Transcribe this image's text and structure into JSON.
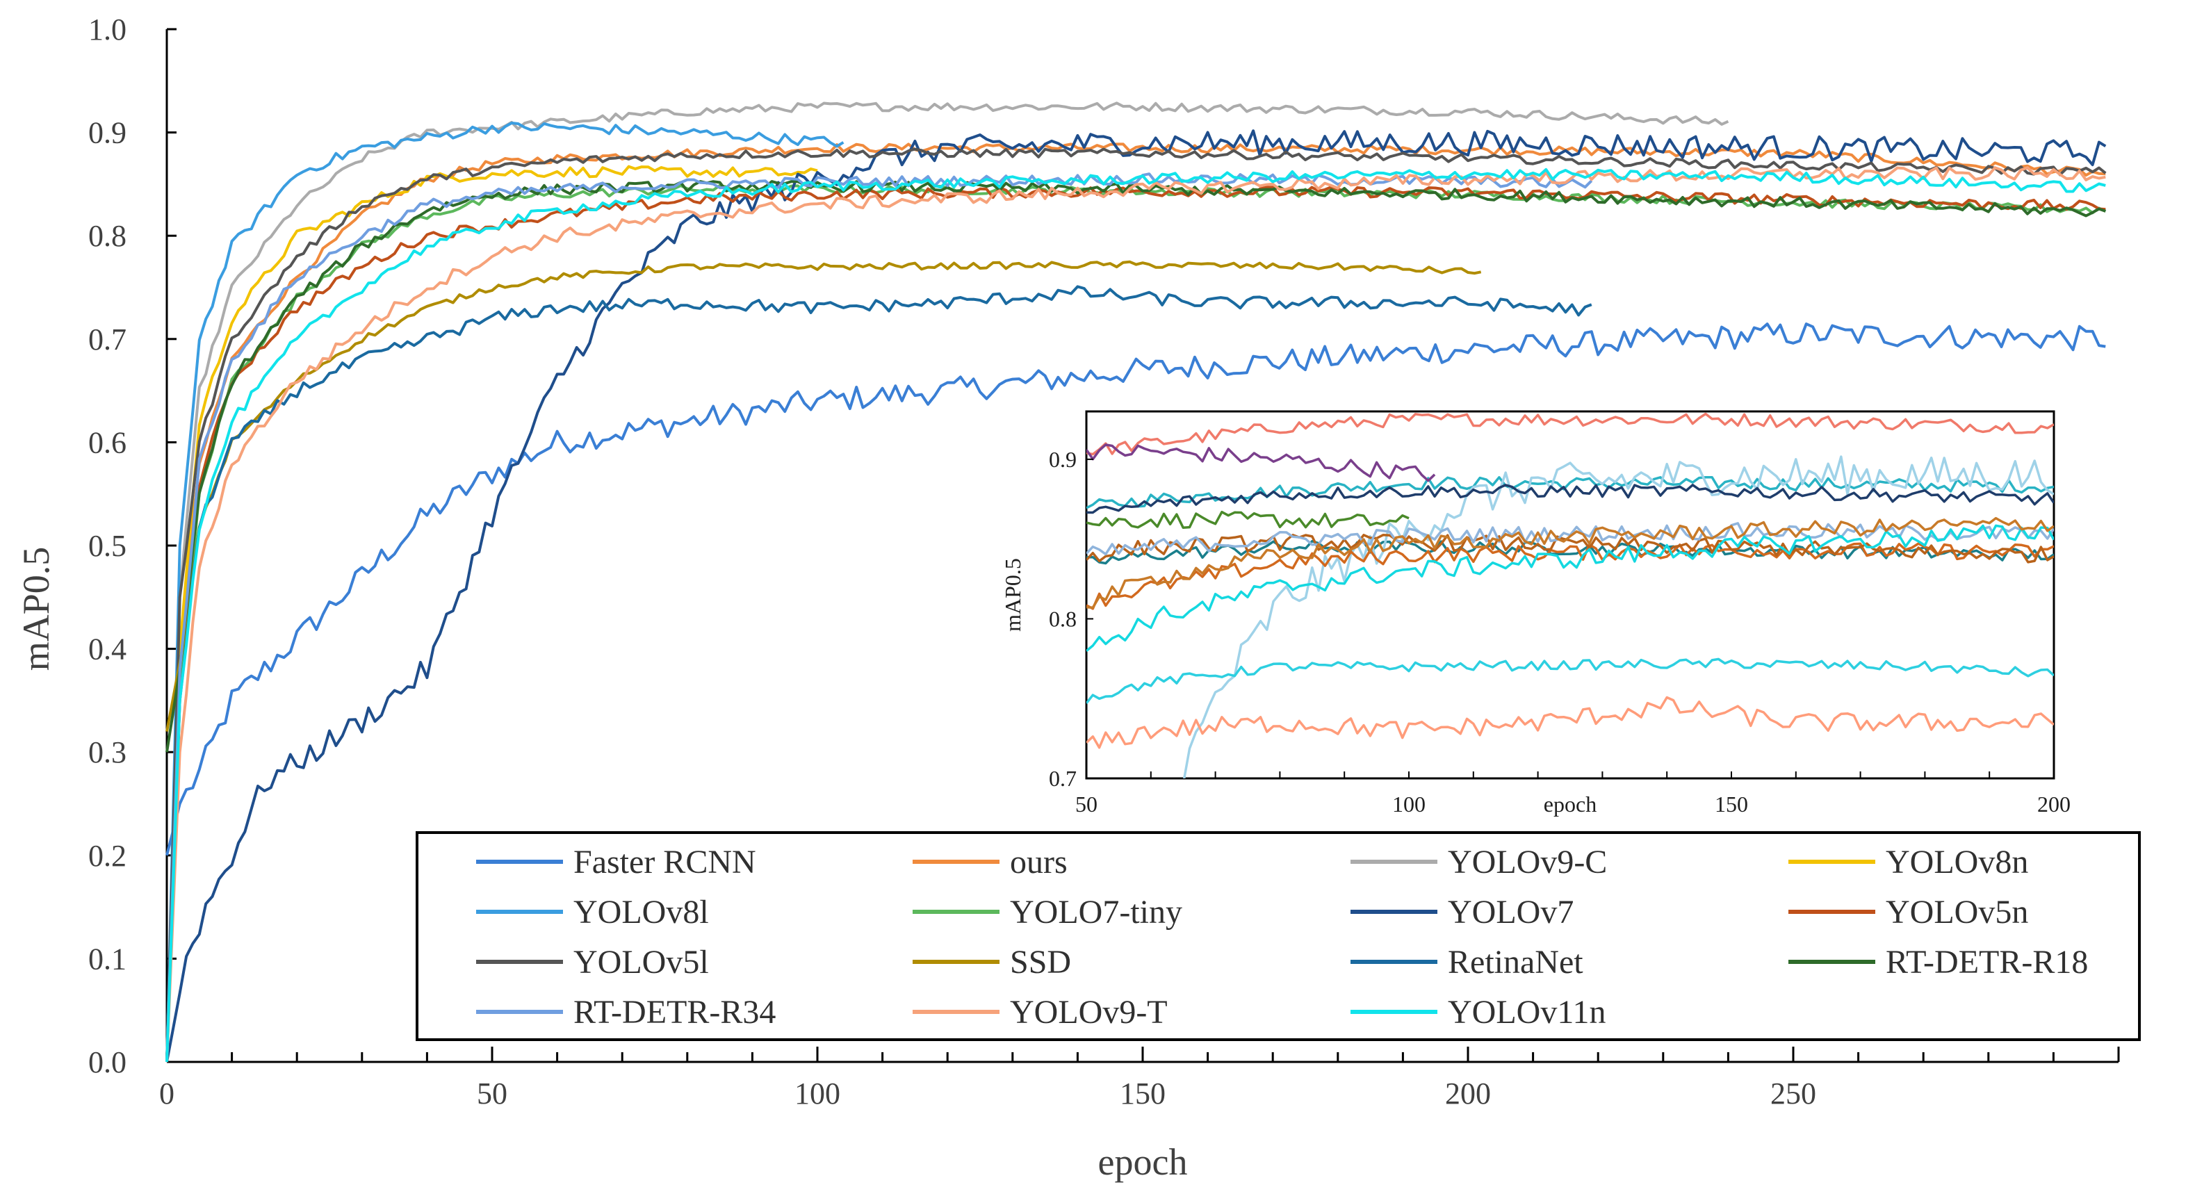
{
  "chart_data": {
    "type": "line",
    "xlabel": "epoch",
    "ylabel": "mAP0.5",
    "xlim": [
      0,
      300
    ],
    "ylim": [
      0.0,
      1.0
    ],
    "x_ticks": [
      "0",
      "50",
      "100",
      "150",
      "200",
      "250"
    ],
    "y_ticks": [
      "0.0",
      "0.1",
      "0.2",
      "0.3",
      "0.4",
      "0.5",
      "0.6",
      "0.7",
      "0.8",
      "0.9",
      "1.0"
    ],
    "grid": false,
    "legend_position": "bottom-right",
    "series": [
      {
        "name": "Faster RCNN",
        "color": "#3a7fd5",
        "epochs": 300,
        "noise": 0.012,
        "points": [
          [
            0,
            0.2
          ],
          [
            2,
            0.25
          ],
          [
            5,
            0.28
          ],
          [
            10,
            0.35
          ],
          [
            20,
            0.41
          ],
          [
            30,
            0.47
          ],
          [
            40,
            0.53
          ],
          [
            50,
            0.57
          ],
          [
            60,
            0.6
          ],
          [
            80,
            0.62
          ],
          [
            100,
            0.64
          ],
          [
            120,
            0.65
          ],
          [
            150,
            0.67
          ],
          [
            200,
            0.69
          ],
          [
            250,
            0.705
          ],
          [
            298,
            0.7
          ]
        ]
      },
      {
        "name": "ours",
        "color": "#f08a3c",
        "epochs": 300,
        "noise": 0.004,
        "points": [
          [
            0,
            0.0
          ],
          [
            2,
            0.4
          ],
          [
            5,
            0.58
          ],
          [
            10,
            0.68
          ],
          [
            20,
            0.76
          ],
          [
            30,
            0.82
          ],
          [
            40,
            0.855
          ],
          [
            50,
            0.87
          ],
          [
            60,
            0.875
          ],
          [
            80,
            0.88
          ],
          [
            100,
            0.885
          ],
          [
            150,
            0.885
          ],
          [
            200,
            0.883
          ],
          [
            250,
            0.88
          ],
          [
            298,
            0.86
          ]
        ]
      },
      {
        "name": "YOLOv9-C",
        "color": "#ababab",
        "epochs": 241,
        "noise": 0.004,
        "points": [
          [
            0,
            0.0
          ],
          [
            2,
            0.45
          ],
          [
            5,
            0.65
          ],
          [
            10,
            0.75
          ],
          [
            20,
            0.83
          ],
          [
            30,
            0.875
          ],
          [
            40,
            0.9
          ],
          [
            50,
            0.905
          ],
          [
            60,
            0.91
          ],
          [
            80,
            0.92
          ],
          [
            100,
            0.925
          ],
          [
            150,
            0.925
          ],
          [
            200,
            0.92
          ],
          [
            240,
            0.91
          ]
        ]
      },
      {
        "name": "YOLOv8n",
        "color": "#f2c200",
        "epochs": 101,
        "noise": 0.005,
        "points": [
          [
            0,
            0.0
          ],
          [
            2,
            0.4
          ],
          [
            5,
            0.62
          ],
          [
            10,
            0.72
          ],
          [
            20,
            0.8
          ],
          [
            30,
            0.83
          ],
          [
            40,
            0.855
          ],
          [
            50,
            0.86
          ],
          [
            60,
            0.862
          ],
          [
            80,
            0.862
          ],
          [
            100,
            0.86
          ]
        ]
      },
      {
        "name": "YOLOv8l",
        "color": "#3a9de0",
        "epochs": 105,
        "noise": 0.005,
        "points": [
          [
            0,
            0.0
          ],
          [
            2,
            0.5
          ],
          [
            5,
            0.7
          ],
          [
            10,
            0.79
          ],
          [
            20,
            0.86
          ],
          [
            30,
            0.885
          ],
          [
            40,
            0.895
          ],
          [
            50,
            0.905
          ],
          [
            60,
            0.905
          ],
          [
            80,
            0.9
          ],
          [
            104,
            0.89
          ]
        ]
      },
      {
        "name": "YOLO7-tiny",
        "color": "#5cb85c",
        "epochs": 300,
        "noise": 0.004,
        "points": [
          [
            0,
            0.0
          ],
          [
            2,
            0.35
          ],
          [
            5,
            0.55
          ],
          [
            10,
            0.66
          ],
          [
            20,
            0.74
          ],
          [
            30,
            0.79
          ],
          [
            40,
            0.82
          ],
          [
            50,
            0.835
          ],
          [
            60,
            0.84
          ],
          [
            80,
            0.845
          ],
          [
            100,
            0.845
          ],
          [
            150,
            0.843
          ],
          [
            200,
            0.84
          ],
          [
            250,
            0.832
          ],
          [
            298,
            0.825
          ]
        ]
      },
      {
        "name": "YOLOv7",
        "color": "#1f4e8c",
        "epochs": 300,
        "noise": 0.012,
        "points": [
          [
            0,
            0.0
          ],
          [
            3,
            0.1
          ],
          [
            6,
            0.15
          ],
          [
            10,
            0.2
          ],
          [
            15,
            0.27
          ],
          [
            20,
            0.29
          ],
          [
            30,
            0.33
          ],
          [
            40,
            0.38
          ],
          [
            50,
            0.53
          ],
          [
            60,
            0.66
          ],
          [
            70,
            0.75
          ],
          [
            80,
            0.81
          ],
          [
            90,
            0.835
          ],
          [
            100,
            0.855
          ],
          [
            110,
            0.875
          ],
          [
            120,
            0.885
          ],
          [
            150,
            0.89
          ],
          [
            200,
            0.89
          ],
          [
            250,
            0.885
          ],
          [
            298,
            0.88
          ]
        ]
      },
      {
        "name": "YOLOv5n",
        "color": "#c0501a",
        "epochs": 300,
        "noise": 0.005,
        "points": [
          [
            0,
            0.0
          ],
          [
            2,
            0.38
          ],
          [
            5,
            0.56
          ],
          [
            10,
            0.66
          ],
          [
            20,
            0.73
          ],
          [
            30,
            0.77
          ],
          [
            40,
            0.8
          ],
          [
            50,
            0.81
          ],
          [
            60,
            0.82
          ],
          [
            80,
            0.835
          ],
          [
            100,
            0.84
          ],
          [
            150,
            0.843
          ],
          [
            200,
            0.842
          ],
          [
            250,
            0.835
          ],
          [
            298,
            0.828
          ]
        ]
      },
      {
        "name": "YOLOv5l",
        "color": "#555555",
        "epochs": 300,
        "noise": 0.004,
        "points": [
          [
            0,
            0.0
          ],
          [
            2,
            0.45
          ],
          [
            5,
            0.6
          ],
          [
            10,
            0.7
          ],
          [
            20,
            0.78
          ],
          [
            30,
            0.83
          ],
          [
            40,
            0.855
          ],
          [
            50,
            0.865
          ],
          [
            60,
            0.872
          ],
          [
            80,
            0.878
          ],
          [
            100,
            0.88
          ],
          [
            150,
            0.88
          ],
          [
            200,
            0.875
          ],
          [
            250,
            0.868
          ],
          [
            298,
            0.862
          ]
        ]
      },
      {
        "name": "SSD",
        "color": "#b08c00",
        "epochs": 203,
        "noise": 0.003,
        "points": [
          [
            0,
            0.32
          ],
          [
            3,
            0.42
          ],
          [
            5,
            0.52
          ],
          [
            10,
            0.6
          ],
          [
            20,
            0.66
          ],
          [
            30,
            0.7
          ],
          [
            40,
            0.73
          ],
          [
            50,
            0.75
          ],
          [
            60,
            0.76
          ],
          [
            80,
            0.77
          ],
          [
            100,
            0.77
          ],
          [
            150,
            0.772
          ],
          [
            180,
            0.77
          ],
          [
            202,
            0.765
          ]
        ]
      },
      {
        "name": "RetinaNet",
        "color": "#1a6aa0",
        "epochs": 220,
        "noise": 0.006,
        "points": [
          [
            0,
            0.0
          ],
          [
            2,
            0.35
          ],
          [
            5,
            0.52
          ],
          [
            10,
            0.6
          ],
          [
            20,
            0.65
          ],
          [
            30,
            0.68
          ],
          [
            40,
            0.7
          ],
          [
            50,
            0.72
          ],
          [
            60,
            0.73
          ],
          [
            80,
            0.735
          ],
          [
            100,
            0.73
          ],
          [
            120,
            0.735
          ],
          [
            140,
            0.745
          ],
          [
            160,
            0.735
          ],
          [
            180,
            0.735
          ],
          [
            200,
            0.735
          ],
          [
            219,
            0.728
          ]
        ]
      },
      {
        "name": "RT-DETR-R18",
        "color": "#2e6b2a",
        "epochs": 300,
        "noise": 0.005,
        "points": [
          [
            0,
            0.3
          ],
          [
            2,
            0.38
          ],
          [
            5,
            0.55
          ],
          [
            10,
            0.66
          ],
          [
            20,
            0.74
          ],
          [
            30,
            0.79
          ],
          [
            40,
            0.825
          ],
          [
            50,
            0.84
          ],
          [
            60,
            0.845
          ],
          [
            80,
            0.848
          ],
          [
            100,
            0.848
          ],
          [
            150,
            0.845
          ],
          [
            200,
            0.84
          ],
          [
            250,
            0.832
          ],
          [
            298,
            0.823
          ]
        ]
      },
      {
        "name": "RT-DETR-R34",
        "color": "#6f9ee0",
        "epochs": 220,
        "noise": 0.005,
        "points": [
          [
            0,
            0.0
          ],
          [
            2,
            0.38
          ],
          [
            5,
            0.58
          ],
          [
            10,
            0.68
          ],
          [
            20,
            0.76
          ],
          [
            30,
            0.8
          ],
          [
            40,
            0.83
          ],
          [
            50,
            0.84
          ],
          [
            60,
            0.845
          ],
          [
            80,
            0.85
          ],
          [
            100,
            0.852
          ],
          [
            150,
            0.855
          ],
          [
            200,
            0.853
          ],
          [
            219,
            0.85
          ]
        ]
      },
      {
        "name": "YOLOv9-T",
        "color": "#f6a27a",
        "epochs": 300,
        "noise": 0.006,
        "points": [
          [
            0,
            0.0
          ],
          [
            2,
            0.3
          ],
          [
            5,
            0.48
          ],
          [
            10,
            0.58
          ],
          [
            20,
            0.66
          ],
          [
            30,
            0.71
          ],
          [
            40,
            0.75
          ],
          [
            50,
            0.78
          ],
          [
            60,
            0.8
          ],
          [
            80,
            0.82
          ],
          [
            100,
            0.83
          ],
          [
            150,
            0.845
          ],
          [
            200,
            0.855
          ],
          [
            250,
            0.86
          ],
          [
            298,
            0.86
          ]
        ]
      },
      {
        "name": "YOLOv11n",
        "color": "#11e3eb",
        "epochs": 300,
        "noise": 0.005,
        "points": [
          [
            0,
            0.0
          ],
          [
            2,
            0.35
          ],
          [
            5,
            0.52
          ],
          [
            10,
            0.62
          ],
          [
            20,
            0.7
          ],
          [
            30,
            0.75
          ],
          [
            40,
            0.79
          ],
          [
            50,
            0.81
          ],
          [
            60,
            0.825
          ],
          [
            80,
            0.84
          ],
          [
            100,
            0.848
          ],
          [
            150,
            0.855
          ],
          [
            200,
            0.86
          ],
          [
            250,
            0.857
          ],
          [
            298,
            0.846
          ]
        ]
      }
    ],
    "inset": {
      "xlabel": "epoch",
      "ylabel": "mAP0.5",
      "xlim": [
        50,
        200
      ],
      "ylim": [
        0.7,
        0.93
      ],
      "x_ticks": [
        "50",
        "100",
        "epoch",
        "150",
        "200"
      ],
      "y_ticks": [
        "0.7",
        "0.8",
        "0.9"
      ],
      "series_colors": [
        "#a4c96a",
        "#29b3c4",
        "#f07a6a",
        "#4a8a2a",
        "#7a3f8c",
        "#1a7f8c",
        "#9fd2e8",
        "#d2691e",
        "#1f3d6b",
        "#2dcfe0",
        "#ff9c7a",
        "#b8621a",
        "#8fb4dc",
        "#14d8e0",
        "#c87a28"
      ]
    }
  }
}
